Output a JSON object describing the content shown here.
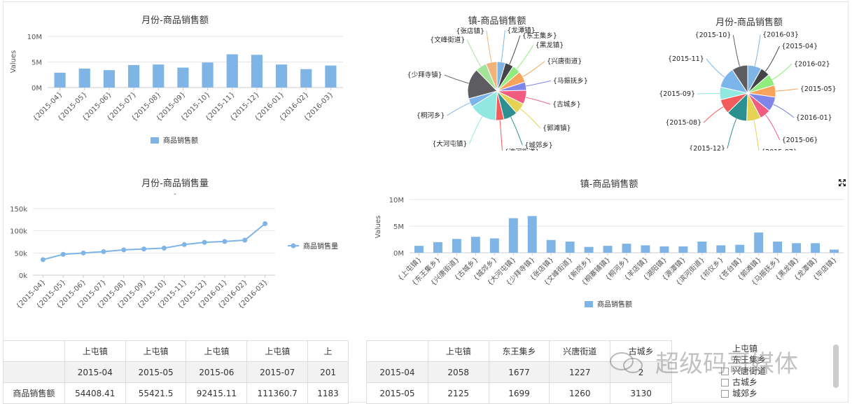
{
  "chart_data": [
    {
      "type": "bar",
      "title": "月份-商品销售额",
      "ylabel": "Values",
      "categories": [
        "{2015-04}",
        "{2015-05}",
        "{2015-06}",
        "{2015-07}",
        "{2015-08}",
        "{2015-09}",
        "{2015-10}",
        "{2015-11}",
        "{2015-12}",
        "{2016-01}",
        "{2016-02}",
        "{2016-03}"
      ],
      "series": [
        {
          "name": "商品销售额",
          "values": [
            2.9,
            3.7,
            3.4,
            4.4,
            4.5,
            3.9,
            4.9,
            6.5,
            6.4,
            4.5,
            3.6,
            4.3
          ]
        }
      ],
      "y_ticks": [
        "0M",
        "5M",
        "10M"
      ],
      "ylim": [
        0,
        10
      ],
      "legend": "bottom",
      "color": "#7eb5e6"
    },
    {
      "type": "pie",
      "title": "镇-商品销售额",
      "labels": [
        "{龙潭镇}",
        "{东王集乡}",
        "{黑龙镇}",
        "{兴唐街道}",
        "{马振抚乡}",
        "{古城乡}",
        "{郭滩镇}",
        "{城郊乡}",
        "{滨河街道}",
        "{大河屯镇}",
        "{桐河乡}",
        "{少拜寺镇}",
        "{文峰街道}",
        "{张店镇}"
      ],
      "values": [
        3,
        3,
        3,
        4,
        3,
        5,
        4,
        5,
        3,
        10,
        3,
        11,
        4,
        4
      ]
    },
    {
      "type": "pie",
      "title": "月份-商品销售额",
      "labels": [
        "{2016-03}",
        "{2015-04}",
        "{2016-02}",
        "{2015-05}",
        "{2016-01}",
        "{2015-06}",
        "{2015-07}",
        "{2015-12}",
        "{2015-08}",
        "{2015-09}",
        "{2015-11}",
        "{2015-10}"
      ],
      "values": [
        4.3,
        2.9,
        3.6,
        3.7,
        4.5,
        3.4,
        4.4,
        6.4,
        4.5,
        3.9,
        6.5,
        4.9
      ]
    },
    {
      "type": "line",
      "title": "月份-商品销售量",
      "subtitle": "-",
      "categories": [
        "{2015-04}",
        "{2015-05}",
        "{2015-06}",
        "{2015-07}",
        "{2015-08}",
        "{2015-09}",
        "{2015-10}",
        "{2015-11}",
        "{2015-12}",
        "{2016-01}",
        "{2016-02}",
        "{2016-03}"
      ],
      "series": [
        {
          "name": "商品销售量",
          "values": [
            35,
            47,
            50,
            53,
            57,
            59,
            61,
            69,
            74,
            76,
            79,
            116
          ]
        }
      ],
      "y_ticks": [
        "0k",
        "50k",
        "100k",
        "150k"
      ],
      "ylim": [
        0,
        150
      ],
      "legend": "right",
      "color": "#7eb5e6"
    },
    {
      "type": "bar",
      "title": "镇-商品销售额",
      "ylabel": "Values",
      "categories": [
        "{上屯镇}",
        "{东王集乡}",
        "{兴唐街道}",
        "{古城乡}",
        "{城郊乡}",
        "{大河屯镇}",
        "{少拜寺镇}",
        "{张店镇}",
        "{文峰街道}",
        "{新岗乡}",
        "{桐寨铺镇}",
        "{桐河乡}",
        "{羊店镇}",
        "{湖阳镇}",
        "{源潭镇}",
        "{滨河街道}",
        "{祁仪乡}",
        "{苍台镇}",
        "{郭滩镇}",
        "{马振抚乡}",
        "{黑龙镇}",
        "{龙潭镇}",
        "{毕店镇}"
      ],
      "series": [
        {
          "name": "商品销售额",
          "values": [
            1.3,
            2.0,
            2.6,
            3.0,
            2.7,
            6.5,
            6.9,
            2.4,
            2.1,
            1.1,
            1.3,
            1.7,
            1.4,
            1.2,
            1.2,
            2.1,
            1.4,
            1.5,
            3.8,
            2.1,
            1.8,
            1.8,
            0.6
          ]
        }
      ],
      "y_ticks": [
        "0M",
        "5M",
        "10M"
      ],
      "ylim": [
        0,
        10
      ],
      "legend": "bottom",
      "color": "#7eb5e6"
    }
  ],
  "table_left": {
    "rows": [
      [
        "",
        "上屯镇",
        "上屯镇",
        "上屯镇",
        "上屯镇",
        "上"
      ],
      [
        "",
        "2015-04",
        "2015-05",
        "2015-06",
        "2015-07",
        "201"
      ],
      [
        "商品销售额",
        "54408.41",
        "55421.5",
        "92415.11",
        "111360.7",
        "1183"
      ]
    ]
  },
  "table_right": {
    "rows": [
      [
        "",
        "上屯镇",
        "东王集乡",
        "兴唐街道",
        "古城乡"
      ],
      [
        "2015-04",
        "2058",
        "1677",
        "1227",
        "2"
      ],
      [
        "2015-05",
        "2125",
        "1699",
        "1260",
        "3130"
      ]
    ]
  },
  "filter": {
    "items": [
      "上屯镇",
      "东王集乡",
      "兴唐街道",
      "古城乡",
      "城郊乡"
    ]
  },
  "watermark": {
    "text": "超级码哥媒体"
  }
}
